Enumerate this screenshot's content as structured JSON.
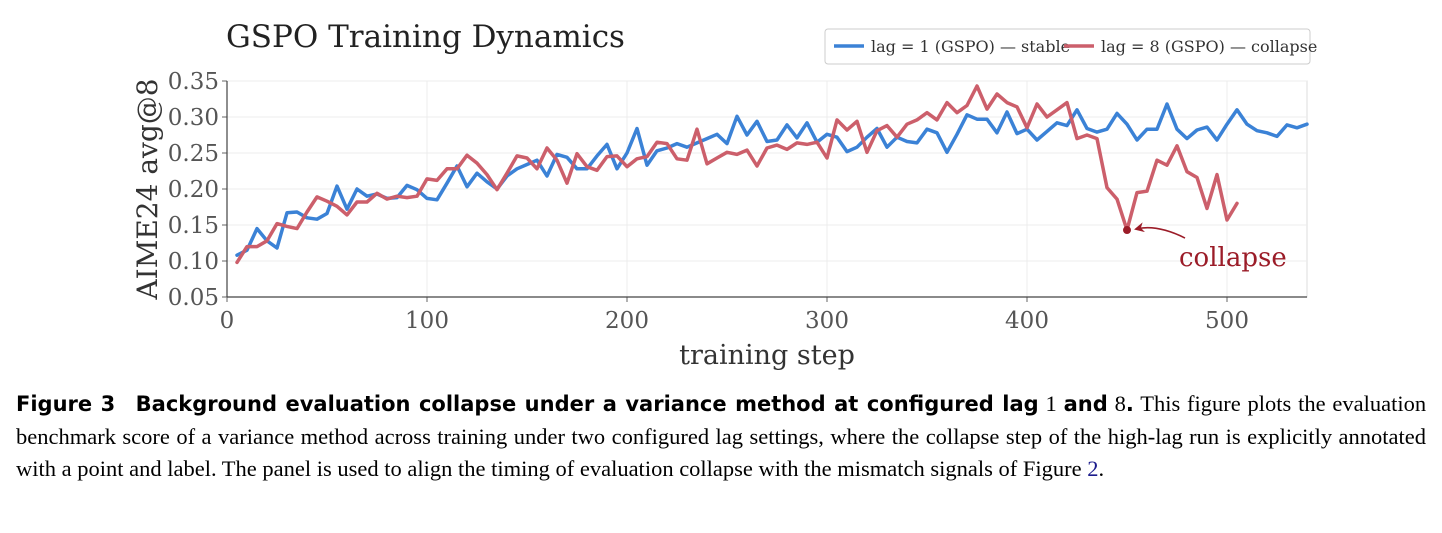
{
  "chart_data": {
    "type": "line",
    "title": "GSPO Training Dynamics",
    "xlabel": "training step",
    "ylabel": "AIME24 avg@8",
    "xlim": [
      0,
      540
    ],
    "ylim": [
      0.05,
      0.35
    ],
    "xticks": [
      0,
      100,
      200,
      300,
      400,
      500
    ],
    "yticks": [
      0.05,
      0.1,
      0.15,
      0.2,
      0.25,
      0.3,
      0.35
    ],
    "ytick_labels": [
      "0.05",
      "0.10",
      "0.15",
      "0.20",
      "0.25",
      "0.30",
      "0.35"
    ],
    "grid": true,
    "legend_position": "top-right",
    "series": [
      {
        "name": "lag = 1 (GSPO) — stable",
        "color": "#3b82d6",
        "x": [
          5,
          10,
          15,
          20,
          25,
          30,
          35,
          40,
          45,
          50,
          55,
          60,
          65,
          70,
          75,
          80,
          85,
          90,
          95,
          100,
          105,
          110,
          115,
          120,
          125,
          130,
          135,
          140,
          145,
          150,
          155,
          160,
          165,
          170,
          175,
          180,
          185,
          190,
          195,
          200,
          205,
          210,
          215,
          220,
          225,
          230,
          235,
          240,
          245,
          250,
          255,
          260,
          265,
          270,
          275,
          280,
          285,
          290,
          295,
          300,
          305,
          310,
          315,
          320,
          325,
          330,
          335,
          340,
          345,
          350,
          355,
          360,
          365,
          370,
          375,
          380,
          385,
          390,
          395,
          400,
          405,
          410,
          415,
          420,
          425,
          430,
          435,
          440,
          445,
          450,
          455,
          460,
          465,
          470,
          475,
          480,
          485,
          490,
          495,
          500,
          505,
          510,
          515,
          520,
          525,
          530,
          535,
          540
        ],
        "values": [
          0.108,
          0.115,
          0.145,
          0.128,
          0.118,
          0.167,
          0.168,
          0.16,
          0.158,
          0.166,
          0.204,
          0.172,
          0.2,
          0.19,
          0.193,
          0.187,
          0.188,
          0.205,
          0.199,
          0.187,
          0.185,
          0.208,
          0.232,
          0.203,
          0.222,
          0.21,
          0.2,
          0.218,
          0.228,
          0.234,
          0.24,
          0.218,
          0.248,
          0.244,
          0.228,
          0.228,
          0.246,
          0.262,
          0.228,
          0.25,
          0.284,
          0.233,
          0.253,
          0.257,
          0.263,
          0.258,
          0.264,
          0.27,
          0.276,
          0.263,
          0.301,
          0.275,
          0.294,
          0.266,
          0.268,
          0.289,
          0.271,
          0.292,
          0.265,
          0.276,
          0.272,
          0.252,
          0.258,
          0.272,
          0.284,
          0.258,
          0.272,
          0.266,
          0.264,
          0.283,
          0.278,
          0.251,
          0.276,
          0.303,
          0.297,
          0.297,
          0.278,
          0.307,
          0.277,
          0.283,
          0.268,
          0.28,
          0.292,
          0.288,
          0.31,
          0.284,
          0.279,
          0.283,
          0.305,
          0.29,
          0.268,
          0.283,
          0.283,
          0.318,
          0.283,
          0.27,
          0.282,
          0.286,
          0.268,
          0.29,
          0.31,
          0.29,
          0.281,
          0.278,
          0.273,
          0.289,
          0.285,
          0.29
        ]
      },
      {
        "name": "lag = 8 (GSPO) — collapse",
        "color": "#cc5f6b",
        "x": [
          5,
          10,
          15,
          20,
          25,
          30,
          35,
          40,
          45,
          50,
          55,
          60,
          65,
          70,
          75,
          80,
          85,
          90,
          95,
          100,
          105,
          110,
          115,
          120,
          125,
          130,
          135,
          140,
          145,
          150,
          155,
          160,
          165,
          170,
          175,
          180,
          185,
          190,
          195,
          200,
          205,
          210,
          215,
          220,
          225,
          230,
          235,
          240,
          245,
          250,
          255,
          260,
          265,
          270,
          275,
          280,
          285,
          290,
          295,
          300,
          305,
          310,
          315,
          320,
          325,
          330,
          335,
          340,
          345,
          350,
          355,
          360,
          365,
          370,
          375,
          380,
          385,
          390,
          395,
          400,
          405,
          410,
          415,
          420,
          425,
          430,
          435,
          440,
          445,
          450,
          455,
          460,
          465,
          470,
          475,
          480,
          485,
          490,
          495,
          500,
          505
        ],
        "values": [
          0.098,
          0.12,
          0.12,
          0.128,
          0.152,
          0.148,
          0.145,
          0.168,
          0.189,
          0.183,
          0.176,
          0.164,
          0.182,
          0.182,
          0.194,
          0.186,
          0.19,
          0.188,
          0.19,
          0.214,
          0.212,
          0.228,
          0.228,
          0.247,
          0.236,
          0.22,
          0.199,
          0.222,
          0.246,
          0.243,
          0.228,
          0.257,
          0.24,
          0.208,
          0.249,
          0.231,
          0.226,
          0.245,
          0.246,
          0.231,
          0.242,
          0.245,
          0.265,
          0.263,
          0.242,
          0.24,
          0.283,
          0.235,
          0.243,
          0.251,
          0.248,
          0.254,
          0.232,
          0.257,
          0.261,
          0.255,
          0.264,
          0.262,
          0.265,
          0.243,
          0.296,
          0.282,
          0.294,
          0.251,
          0.281,
          0.288,
          0.272,
          0.29,
          0.296,
          0.306,
          0.296,
          0.32,
          0.306,
          0.316,
          0.343,
          0.311,
          0.332,
          0.32,
          0.314,
          0.285,
          0.318,
          0.3,
          0.31,
          0.32,
          0.27,
          0.275,
          0.27,
          0.202,
          0.186,
          0.143,
          0.195,
          0.197,
          0.24,
          0.233,
          0.26,
          0.224,
          0.216,
          0.173,
          0.22,
          0.157,
          0.18
        ]
      }
    ],
    "annotation": {
      "label": "collapse",
      "x": 450,
      "y": 0.143,
      "color": "#9b1c28"
    }
  },
  "caption": {
    "figure_label": "Figure 3",
    "bold_part1": "Background evaluation collapse under a variance method at configured lag",
    "lag_low": "1",
    "and_word": "and",
    "lag_high": "8",
    "period": ".",
    "body_before_ref": "This figure plots the evaluation benchmark score of a variance method across training under two configured lag settings, where the collapse step of the high-lag run is explicitly annotated with a point and label. The panel is used to align the timing of evaluation collapse with the mismatch signals of Figure",
    "ref": "2",
    "body_end": "."
  }
}
